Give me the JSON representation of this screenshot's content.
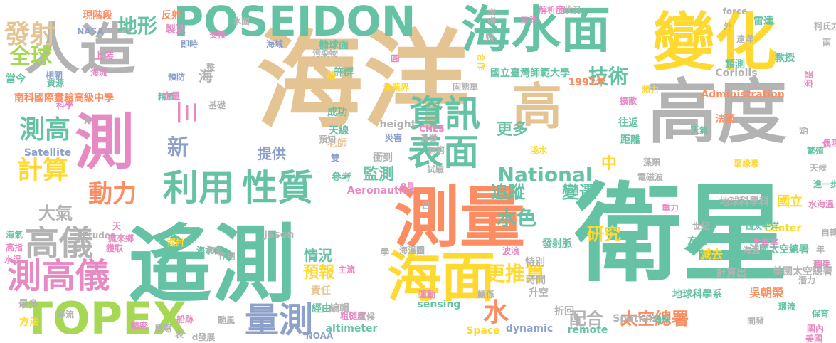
{
  "palette": {
    "green": "#66c2a5",
    "orange": "#fc8d62",
    "blue": "#8da0cb",
    "pink": "#e78ac3",
    "lime": "#a6d854",
    "yellow": "#ffd92f",
    "tan": "#e5c494",
    "gray": "#b3b3b3"
  },
  "words": [
    {
      "text": "海洋",
      "color": "tan"
    },
    {
      "text": "衛星",
      "color": "green"
    },
    {
      "text": "遙測",
      "color": "green"
    },
    {
      "text": "高度",
      "color": "gray"
    },
    {
      "text": "變化",
      "color": "yellow"
    },
    {
      "text": "測量",
      "color": "orange"
    },
    {
      "text": "人造",
      "color": "gray"
    },
    {
      "text": "測",
      "color": "pink"
    },
    {
      "text": "海水面",
      "color": "green"
    },
    {
      "text": "高",
      "color": "tan"
    },
    {
      "text": "海面",
      "color": "yellow"
    },
    {
      "text": "POSEIDON",
      "color": "green"
    },
    {
      "text": "TOPEX",
      "color": "lime"
    },
    {
      "text": "利用",
      "color": "green"
    },
    {
      "text": "性質",
      "color": "green"
    },
    {
      "text": "表面",
      "color": "green"
    },
    {
      "text": "資訊",
      "color": "green"
    },
    {
      "text": "高儀",
      "color": "gray"
    },
    {
      "text": "測高儀",
      "color": "pink"
    },
    {
      "text": "量測",
      "color": "blue"
    },
    {
      "text": "發射",
      "color": "tan"
    },
    {
      "text": "測高",
      "color": "green"
    },
    {
      "text": "計算",
      "color": "yellow"
    },
    {
      "text": "全球",
      "color": "lime"
    },
    {
      "text": "地形",
      "color": "green"
    },
    {
      "text": "技術",
      "color": "green"
    },
    {
      "text": "動力",
      "color": "orange"
    },
    {
      "text": "National",
      "color": "green"
    },
    {
      "text": "新",
      "color": "blue"
    },
    {
      "text": "三",
      "color": "pink"
    },
    {
      "text": "大氣",
      "color": "gray"
    },
    {
      "text": "水",
      "color": "orange"
    },
    {
      "text": "水色",
      "color": "green"
    },
    {
      "text": "更推算",
      "color": "yellow"
    },
    {
      "text": "研究",
      "color": "yellow"
    },
    {
      "text": "追蹤",
      "color": "green"
    },
    {
      "text": "變遷",
      "color": "green"
    },
    {
      "text": "配合",
      "color": "gray"
    },
    {
      "text": "太空總署",
      "color": "orange"
    },
    {
      "text": "提供",
      "color": "blue"
    },
    {
      "text": "監測",
      "color": "green"
    },
    {
      "text": "預報",
      "color": "yellow"
    },
    {
      "text": "情況",
      "color": "green"
    },
    {
      "text": "更多",
      "color": "green"
    },
    {
      "text": "中",
      "color": "yellow"
    },
    {
      "text": "海",
      "color": "gray"
    },
    {
      "text": "Satellite",
      "color": "blue"
    },
    {
      "text": "上裝",
      "color": "pink"
    },
    {
      "text": "當今",
      "color": "green"
    },
    {
      "text": "南科國際實驗高級中學",
      "color": "orange"
    },
    {
      "text": "國立臺灣師範大學",
      "color": "green"
    },
    {
      "text": "1992年",
      "color": "orange"
    },
    {
      "text": "成功",
      "color": "green"
    },
    {
      "text": "天線",
      "color": "green"
    },
    {
      "text": "老師",
      "color": "tan"
    },
    {
      "text": "height",
      "color": "gray"
    },
    {
      "text": "衝到",
      "color": "gray"
    },
    {
      "text": "參考",
      "color": "green"
    },
    {
      "text": "地球科學系",
      "color": "green"
    },
    {
      "text": "地球科學科",
      "color": "gray"
    },
    {
      "text": "國立",
      "color": "yellow"
    },
    {
      "text": "方向",
      "color": "green"
    },
    {
      "text": "減去",
      "color": "yellow"
    },
    {
      "text": "底",
      "color": "green"
    },
    {
      "text": "發射脈",
      "color": "green"
    },
    {
      "text": "特別",
      "color": "gray"
    },
    {
      "text": "時間",
      "color": "gray"
    },
    {
      "text": "升空",
      "color": "gray"
    },
    {
      "text": "折回",
      "color": "gray"
    },
    {
      "text": "remote",
      "color": "green"
    },
    {
      "text": "dynamic",
      "color": "blue"
    },
    {
      "text": "sensing",
      "color": "green"
    },
    {
      "text": "altimeter",
      "color": "green"
    },
    {
      "text": "Space",
      "color": "yellow"
    },
    {
      "text": "吳朝榮",
      "color": "orange"
    },
    {
      "text": "美國太空總署",
      "color": "gray"
    },
    {
      "text": "法國太空總署",
      "color": "green"
    },
    {
      "text": "計算出",
      "color": "gray"
    },
    {
      "text": "雷達",
      "color": "green"
    },
    {
      "text": "教授",
      "color": "green"
    },
    {
      "text": "類測",
      "color": "green"
    },
    {
      "text": "Administration",
      "color": "orange"
    },
    {
      "text": "Coriolis",
      "color": "gray"
    },
    {
      "text": "法國",
      "color": "orange"
    },
    {
      "text": "距離",
      "color": "green"
    },
    {
      "text": "往返",
      "color": "green"
    },
    {
      "text": "許群",
      "color": "green"
    },
    {
      "text": "橢球面",
      "color": "green"
    },
    {
      "text": "現階段",
      "color": "orange"
    },
    {
      "text": "反射",
      "color": "orange"
    },
    {
      "text": "製造",
      "color": "pink"
    },
    {
      "text": "NASA",
      "color": "blue"
    },
    {
      "text": "Etudes",
      "color": "gray"
    },
    {
      "text": "Jason",
      "color": "gray"
    },
    {
      "text": "CNES",
      "color": "pink"
    },
    {
      "text": "Aeronautics",
      "color": "pink"
    },
    {
      "text": "force",
      "color": "gray"
    },
    {
      "text": "Center",
      "color": "yellow"
    },
    {
      "text": "Spatials",
      "color": "gray"
    },
    {
      "text": "NOAA",
      "color": "blue"
    },
    {
      "text": "世紀",
      "color": "gray"
    },
    {
      "text": "西太平洋",
      "color": "green"
    },
    {
      "text": "生產率",
      "color": "pink"
    },
    {
      "text": "經由",
      "color": "green"
    },
    {
      "text": "責任",
      "color": "tan"
    },
    {
      "text": "編輯",
      "color": "gray"
    },
    {
      "text": "粗糙度",
      "color": "pink"
    },
    {
      "text": "氣候",
      "color": "gray"
    },
    {
      "text": "颱風",
      "color": "gray"
    },
    {
      "text": "d發展",
      "color": "gray"
    },
    {
      "text": "最多",
      "color": "gray"
    },
    {
      "text": "方法",
      "color": "yellow"
    },
    {
      "text": "洋流",
      "color": "gray"
    },
    {
      "text": "精密",
      "color": "pink"
    },
    {
      "text": "船跡",
      "color": "pink"
    },
    {
      "text": "風場",
      "color": "gray"
    },
    {
      "text": "表",
      "color": "gray"
    },
    {
      "text": "海水位",
      "color": "green"
    },
    {
      "text": "探討",
      "color": "yellow"
    },
    {
      "text": "高指",
      "color": "pink"
    },
    {
      "text": "海氣",
      "color": "green"
    },
    {
      "text": "水溫",
      "color": "pink"
    },
    {
      "text": "海水位觀",
      "color": "green"
    },
    {
      "text": "葉綠素",
      "color": "yellow"
    },
    {
      "text": "藻類",
      "color": "gray"
    },
    {
      "text": "電磁波",
      "color": "gray"
    },
    {
      "text": "水海溫",
      "color": "pink"
    },
    {
      "text": "自轉",
      "color": "gray"
    },
    {
      "text": "年",
      "color": "gray"
    },
    {
      "text": "遙時",
      "color": "gray"
    },
    {
      "text": "損失",
      "color": "pink"
    },
    {
      "text": "潛力",
      "color": "gray"
    },
    {
      "text": "保育",
      "color": "green"
    },
    {
      "text": "國內",
      "color": "pink"
    },
    {
      "text": "美國",
      "color": "pink"
    },
    {
      "text": "地球",
      "color": "green"
    },
    {
      "text": "環流",
      "color": "green"
    },
    {
      "text": "開發",
      "color": "gray"
    },
    {
      "text": "海溫",
      "color": "gray"
    },
    {
      "text": "重力",
      "color": "pink"
    },
    {
      "text": "繁殖",
      "color": "green"
    },
    {
      "text": "天候",
      "color": "gray"
    },
    {
      "text": "進一步",
      "color": "green"
    },
    {
      "text": "想力",
      "color": "yellow"
    },
    {
      "text": "假",
      "color": "gray"
    },
    {
      "text": "偶限",
      "color": "pink"
    },
    {
      "text": "溫度",
      "color": "pink"
    },
    {
      "text": "兩",
      "color": "gray"
    },
    {
      "text": "柯氏力",
      "color": "gray"
    },
    {
      "text": "解析度",
      "color": "pink"
    },
    {
      "text": "狀況",
      "color": "gray"
    },
    {
      "text": "外",
      "color": "gray"
    },
    {
      "text": "遠洋",
      "color": "gray"
    },
    {
      "text": "有害",
      "color": "gray"
    },
    {
      "text": "星測",
      "color": "pink"
    },
    {
      "text": "國",
      "color": "pink"
    },
    {
      "text": "頻",
      "color": "gray"
    },
    {
      "text": "合作",
      "color": "yellow"
    },
    {
      "text": "固態單",
      "color": "gray"
    },
    {
      "text": "漁業界",
      "color": "yellow"
    },
    {
      "text": "熱",
      "color": "yellow"
    },
    {
      "text": "污染物",
      "color": "gray"
    },
    {
      "text": "海域",
      "color": "blue"
    },
    {
      "text": "水面",
      "color": "gray"
    },
    {
      "text": "交換",
      "color": "pink"
    },
    {
      "text": "整",
      "color": "gray"
    },
    {
      "text": "即時",
      "color": "blue"
    },
    {
      "text": "預防",
      "color": "blue"
    },
    {
      "text": "海流",
      "color": "pink"
    },
    {
      "text": "相關",
      "color": "blue"
    },
    {
      "text": "科學",
      "color": "pink"
    },
    {
      "text": "精確",
      "color": "green"
    },
    {
      "text": "含量",
      "color": "pink"
    },
    {
      "text": "基礎",
      "color": "gray"
    },
    {
      "text": "A",
      "color": "gray"
    },
    {
      "text": "資源",
      "color": "green"
    },
    {
      "text": "擴散",
      "color": "pink"
    },
    {
      "text": "天氣",
      "color": "green"
    },
    {
      "text": "漁業",
      "color": "gray"
    },
    {
      "text": "災害",
      "color": "blue"
    },
    {
      "text": "雙",
      "color": "blue"
    },
    {
      "text": "預知",
      "color": "gray"
    },
    {
      "text": "無窮",
      "color": "gray"
    },
    {
      "text": "試驗",
      "color": "gray"
    },
    {
      "text": "淺水",
      "color": "yellow"
    },
    {
      "text": "8月",
      "color": "pink"
    },
    {
      "text": "日",
      "color": "gray"
    },
    {
      "text": "海溫圖",
      "color": "gray"
    },
    {
      "text": "主流",
      "color": "pink"
    },
    {
      "text": "運動",
      "color": "pink"
    },
    {
      "text": "鰓係",
      "color": "gray"
    },
    {
      "text": "波浪",
      "color": "pink"
    },
    {
      "text": "學",
      "color": "gray"
    },
    {
      "text": "作用",
      "color": "gray"
    },
    {
      "text": "海水",
      "color": "gray"
    },
    {
      "text": "天",
      "color": "pink"
    },
    {
      "text": "瘋來鄉",
      "color": "pink"
    },
    {
      "text": "獲取",
      "color": "pink"
    }
  ]
}
